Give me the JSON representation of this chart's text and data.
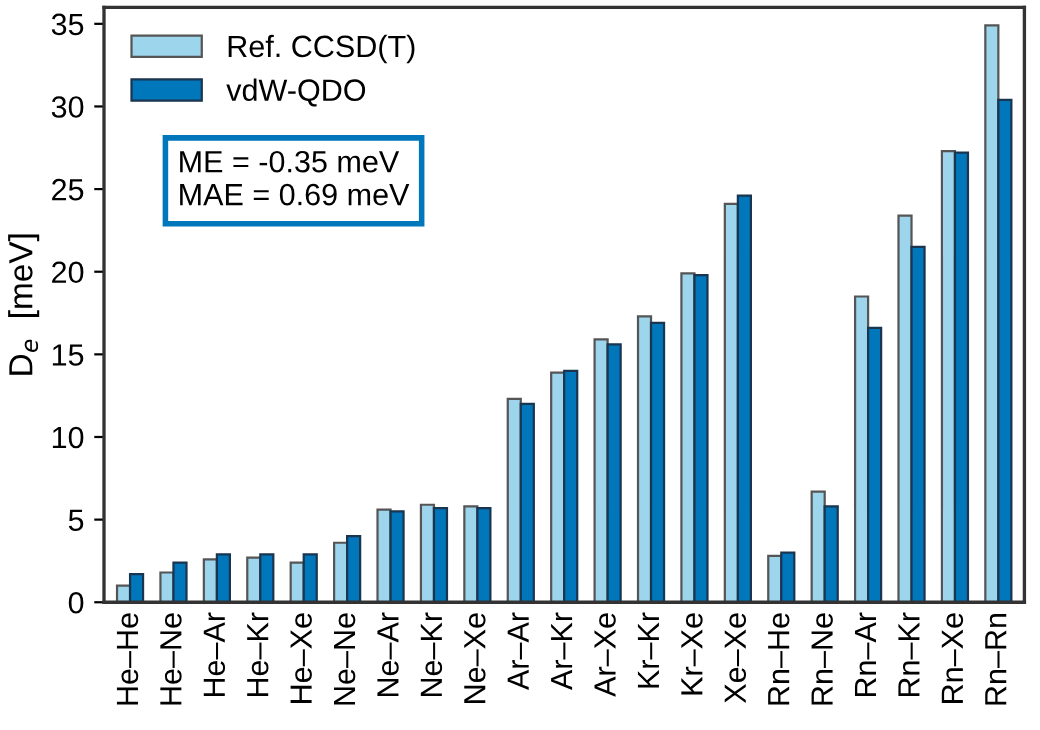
{
  "chart_data": {
    "type": "bar",
    "ylabel": "D$_{e}$  [meV]",
    "categories": [
      "He–He",
      "He–Ne",
      "He–Ar",
      "He–Kr",
      "He–Xe",
      "Ne–Ne",
      "Ne–Ar",
      "Ne–Kr",
      "Ne–Xe",
      "Ar–Ar",
      "Ar–Kr",
      "Ar–Xe",
      "Kr–Kr",
      "Kr–Xe",
      "Xe–Xe",
      "Rn–He",
      "Rn–Ne",
      "Rn–Ar",
      "Rn–Kr",
      "Rn–Xe",
      "Rn–Rn"
    ],
    "series": [
      {
        "name": "Ref. CCSD(T)",
        "color": "#9dd5ec",
        "values": [
          1.0,
          1.8,
          2.6,
          2.7,
          2.4,
          3.6,
          5.6,
          5.9,
          5.8,
          12.3,
          13.9,
          15.9,
          17.3,
          19.9,
          24.1,
          2.8,
          6.7,
          18.5,
          23.4,
          27.3,
          34.9
        ]
      },
      {
        "name": "vdW-QDO",
        "color": "#0076bb",
        "values": [
          1.7,
          2.4,
          2.9,
          2.9,
          2.9,
          4.0,
          5.5,
          5.7,
          5.7,
          12.0,
          14.0,
          15.6,
          16.9,
          19.8,
          24.6,
          3.0,
          5.8,
          16.6,
          21.5,
          27.2,
          30.4
        ]
      }
    ],
    "ylim": [
      0,
      36
    ],
    "yticks": [
      0,
      5,
      10,
      15,
      20,
      25,
      30,
      35
    ],
    "grid": false,
    "legend": "top left",
    "annotations": [
      "ME = -0.35 meV\nMAE = 0.69 meV"
    ]
  }
}
